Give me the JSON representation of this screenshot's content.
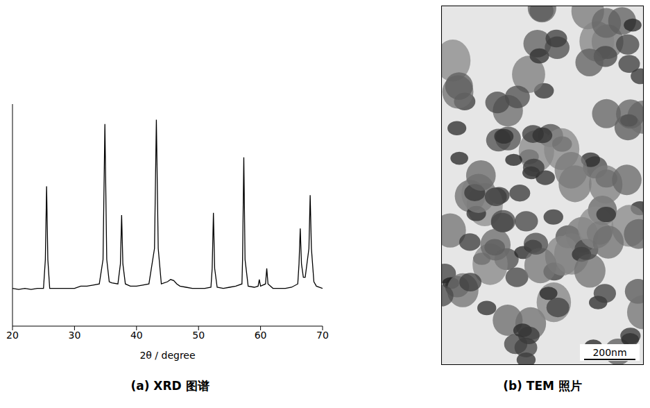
{
  "chart_data": {
    "type": "line",
    "title": "(a) XRD 图谱",
    "x_label": "2θ / degree",
    "x": [
      20,
      21,
      22,
      23,
      24,
      25,
      25.3,
      25.5,
      25.7,
      26,
      28,
      30,
      31,
      32,
      33,
      34,
      34.6,
      34.9,
      35.2,
      35.6,
      36,
      37,
      37.4,
      37.6,
      37.8,
      38.2,
      39,
      40,
      41,
      42,
      42.9,
      43.2,
      43.5,
      44,
      45,
      45.5,
      46,
      46.5,
      47,
      48,
      49,
      50,
      51,
      52,
      52.2,
      52.4,
      52.6,
      53,
      54,
      55,
      56,
      57,
      57.1,
      57.3,
      57.5,
      58,
      59,
      59.6,
      59.8,
      60,
      60.8,
      61,
      61.2,
      62,
      63,
      64,
      65,
      66,
      66.2,
      66.4,
      66.6,
      66.9,
      67.2,
      67.8,
      68,
      68.2,
      68.6,
      69,
      70
    ],
    "values": [
      17,
      16.5,
      17,
      16.5,
      17,
      17,
      30,
      63,
      30,
      17,
      17,
      17,
      18,
      18,
      18.5,
      19,
      30,
      91,
      30,
      20,
      19.5,
      19,
      28,
      50,
      28,
      19,
      18,
      18,
      18.5,
      19,
      35,
      93,
      35,
      19,
      20,
      21,
      20.5,
      19,
      18,
      17.5,
      17,
      17,
      17,
      17.5,
      26,
      51,
      26,
      17.5,
      17,
      17.5,
      18,
      19,
      30,
      76,
      30,
      18,
      17.5,
      18,
      21,
      18,
      19,
      26,
      19,
      17,
      17,
      17,
      17.5,
      19,
      28,
      44,
      28,
      22,
      22,
      35,
      59,
      35,
      20,
      18,
      17
    ],
    "color": "#000000",
    "xlim": [
      20,
      70
    ],
    "xticks": [
      20,
      30,
      40,
      50,
      60,
      70
    ],
    "ylim": [
      0,
      100
    ],
    "yticks": [],
    "tick_labels": "x",
    "grid": false
  },
  "image": {
    "caption": "(b) TEM 照片",
    "scale_bar": "200nm"
  }
}
